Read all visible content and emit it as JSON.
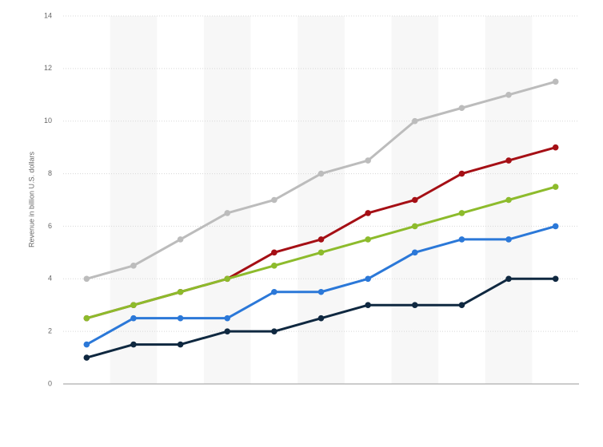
{
  "chart_data": {
    "type": "line",
    "y_label": "Revenue in billion U.S. dollars",
    "categories": [
      null,
      null,
      null,
      null,
      null,
      null,
      null,
      null,
      null,
      null,
      null
    ],
    "series": [
      {
        "color": "#bcbcbc",
        "values": [
          4,
          4.5,
          5.5,
          6.5,
          7,
          8,
          8.5,
          10,
          10.5,
          11,
          11.5
        ]
      },
      {
        "color": "#a50f15",
        "values": [
          2.5,
          3,
          3.5,
          4,
          5,
          5.5,
          6.5,
          7,
          8,
          8.5,
          9
        ]
      },
      {
        "color": "#8dbb2c",
        "values": [
          2.5,
          3,
          3.5,
          4,
          4.5,
          5,
          5.5,
          6,
          6.5,
          7,
          7.5
        ]
      },
      {
        "color": "#2b78d8",
        "values": [
          1.5,
          2.5,
          2.5,
          2.5,
          3.5,
          3.5,
          4,
          5,
          5.5,
          5.5,
          6
        ]
      },
      {
        "color": "#0f2840",
        "values": [
          1,
          1.5,
          1.5,
          2,
          2,
          2.5,
          3,
          3,
          3,
          4,
          4
        ]
      }
    ],
    "ylim": [
      0,
      14
    ],
    "yticks": [
      0,
      2,
      4,
      6,
      8,
      10,
      12,
      14
    ],
    "grid": true
  }
}
